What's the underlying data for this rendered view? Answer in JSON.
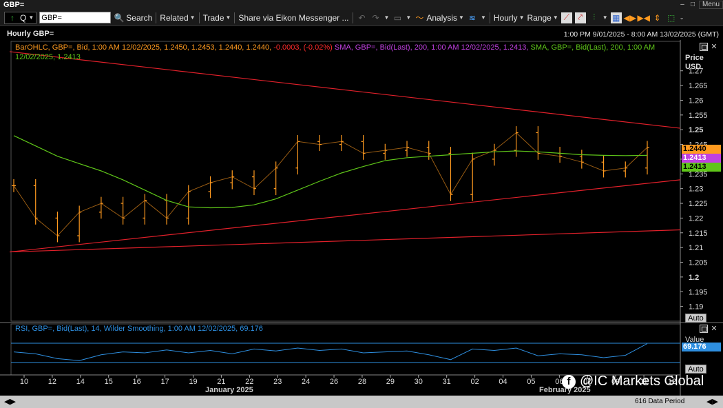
{
  "window": {
    "title": "GBP=",
    "menu_label": "Menu"
  },
  "toolbar": {
    "ric_value": "GBP=",
    "search_label": "Search",
    "related_label": "Related",
    "trade_label": "Trade",
    "share_label": "Share via Eikon Messenger ...",
    "analysis_label": "Analysis",
    "interval_label": "Hourly",
    "range_label": "Range"
  },
  "header": {
    "chart_title": "Hourly GBP=",
    "date_range": "1:00 PM 9/01/2025 - 8:00 AM 13/02/2025 (GMT)"
  },
  "legend": {
    "ohlc_text": "BarOHLC, GBP=, Bid, 1:00 AM 12/02/2025, 1.2450, 1.2453, 1.2440, 1.2440,",
    "change_text": "-0.0003, (-0.02%)",
    "sma1_text": "SMA, GBP=, Bid(Last), 200, 1:00 AM 12/02/2025, 1.2413,",
    "sma2_text": "SMA, GBP=, Bid(Last), 200, 1:00 AM 12/02/2025, 1.2413"
  },
  "axis": {
    "price_label": "Price",
    "currency_label": "USD",
    "auto_label": "Auto",
    "value_label": "Value"
  },
  "price_tags": {
    "last": "1.2440",
    "sma_purple": "1.2413",
    "sma_green": "1.2413"
  },
  "rsi": {
    "legend_text": "RSI, GBP=, Bid(Last), 14, Wilder Smoothing, 1:00 AM 12/02/2025, 69.176",
    "value_tag": "69.176"
  },
  "months": {
    "jan": "January 2025",
    "feb": "February 2025"
  },
  "watermark": "@IC Markets Global",
  "scrollbar": {
    "period_label": "616 Data Period"
  },
  "colors": {
    "bars": "#ff9a1f",
    "sma": "#5fc619",
    "sma_tag": "#c040e0",
    "trendlines": "#e0202a",
    "rsi": "#2e8fe0",
    "change_text": "#ff2a2a",
    "legend_ohlc": "#ff9a1f",
    "legend_sma1": "#c040e0",
    "legend_sma2": "#5fc619"
  },
  "chart_data": {
    "type": "line",
    "title": "Hourly GBP=",
    "ylabel": "Price USD",
    "ylim": [
      1.185,
      1.28
    ],
    "y_ticks": [
      1.19,
      1.195,
      1.2,
      1.205,
      1.21,
      1.215,
      1.22,
      1.225,
      1.23,
      1.235,
      1.24,
      1.245,
      1.25,
      1.255,
      1.26,
      1.265,
      1.27
    ],
    "y_tick_labels": [
      "1.19",
      "1.195",
      "1.2",
      "1.205",
      "1.21",
      "1.215",
      "1.22",
      "1.225",
      "1.23",
      "1.235",
      "1.24",
      "1.245",
      "1.25",
      "1.255",
      "1.26",
      "1.265",
      "1.27"
    ],
    "x_tick_labels": [
      "10",
      "12",
      "14",
      "15",
      "16",
      "17",
      "19",
      "21",
      "22",
      "23",
      "24",
      "26",
      "28",
      "29",
      "30",
      "31",
      "02",
      "04",
      "05",
      "06",
      "07",
      "09",
      "11",
      "12"
    ],
    "x": [
      "10",
      "12",
      "13",
      "14",
      "15",
      "16",
      "17",
      "19",
      "20",
      "21",
      "22",
      "23",
      "24",
      "25",
      "26",
      "27",
      "28",
      "29",
      "30",
      "31",
      "02",
      "03",
      "04",
      "05",
      "06",
      "07",
      "09",
      "10",
      "11",
      "12"
    ],
    "series": [
      {
        "role": "close",
        "values": [
          1.231,
          1.22,
          1.214,
          1.222,
          1.225,
          1.22,
          1.226,
          1.22,
          1.229,
          1.232,
          1.234,
          1.23,
          1.237,
          1.246,
          1.245,
          1.246,
          1.242,
          1.243,
          1.244,
          1.242,
          1.228,
          1.24,
          1.243,
          1.249,
          1.242,
          1.241,
          1.239,
          1.236,
          1.237,
          1.244
        ]
      },
      {
        "name": "SMA 200",
        "values": [
          1.248,
          1.2445,
          1.241,
          1.2385,
          1.236,
          1.233,
          1.2295,
          1.226,
          1.2238,
          1.2235,
          1.2236,
          1.2245,
          1.2265,
          1.2295,
          1.2325,
          1.2353,
          1.2375,
          1.2395,
          1.2405,
          1.241,
          1.2415,
          1.242,
          1.2425,
          1.2428,
          1.2425,
          1.242,
          1.2415,
          1.2413,
          1.2412,
          1.2413
        ]
      }
    ],
    "trendlines": [
      {
        "from": [
          "10",
          1.2765
        ],
        "to": [
          "12",
          1.2505
        ]
      },
      {
        "from": [
          "10",
          1.2085
        ],
        "to": [
          "12",
          1.233
        ]
      },
      {
        "from": [
          "10",
          1.2085
        ],
        "to": [
          "12",
          1.216
        ]
      }
    ],
    "rsi": {
      "period": 14,
      "last_value": 69.176,
      "reference_levels": [
        30,
        70
      ],
      "values": [
        52,
        48,
        38,
        34,
        46,
        52,
        50,
        56,
        50,
        55,
        48,
        58,
        54,
        60,
        55,
        58,
        50,
        52,
        54,
        46,
        36,
        58,
        55,
        60,
        44,
        48,
        46,
        40,
        45,
        69.176
      ]
    },
    "grid": false
  }
}
